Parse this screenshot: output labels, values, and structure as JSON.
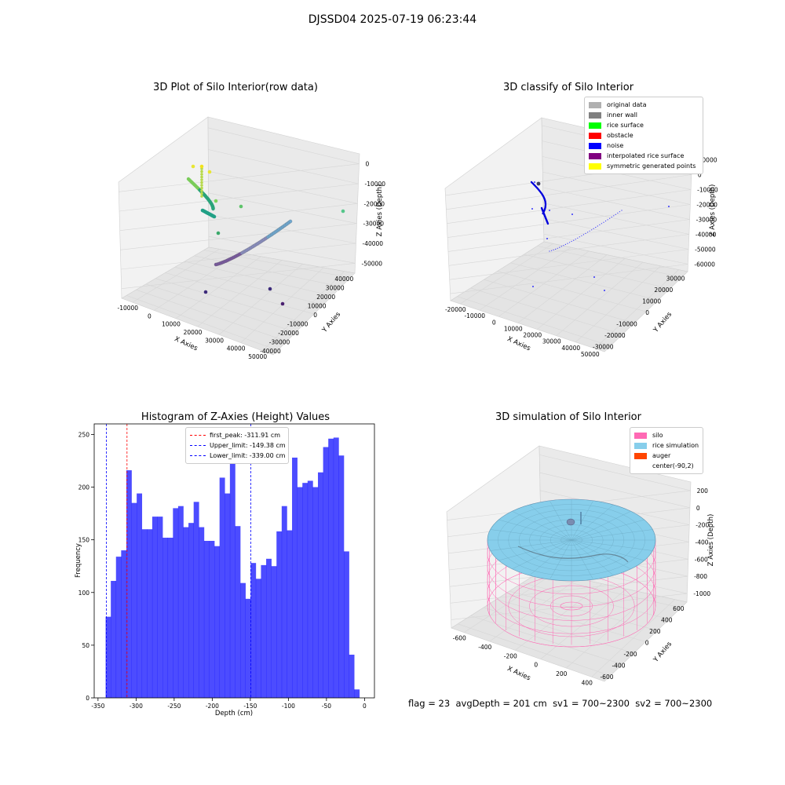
{
  "figure": {
    "suptitle": "DJSSD04 2025-07-19 06:23:44",
    "status": {
      "flag": "flag = 23",
      "avg_depth": "avgDepth = 201 cm",
      "sv1": "sv1 = 700~2300",
      "sv2": "sv2 = 700~2300"
    }
  },
  "panels": {
    "raw": {
      "title": "3D Plot of Silo Interior(row data)",
      "xlabel": "X Axies",
      "ylabel": "Y Axies",
      "zlabel": "Z Axies (Depth)",
      "xticks": [
        "-10000",
        "0",
        "10000",
        "20000",
        "30000",
        "40000",
        "50000"
      ],
      "yticks": [
        "-40000",
        "-30000",
        "-20000",
        "-10000",
        "0",
        "10000",
        "20000",
        "30000",
        "40000"
      ],
      "zticks": [
        "0",
        "-10000",
        "-20000",
        "-30000",
        "-40000",
        "-50000"
      ]
    },
    "classify": {
      "title": "3D classify of Silo Interior",
      "xlabel": "X Axies",
      "ylabel": "Y Axies",
      "zlabel": "Z Axies (Depth)",
      "xticks": [
        "-20000",
        "-10000",
        "0",
        "10000",
        "20000",
        "30000",
        "40000",
        "50000"
      ],
      "yticks": [
        "-30000",
        "-20000",
        "-10000",
        "0",
        "10000",
        "20000",
        "30000"
      ],
      "zticks": [
        "10000",
        "0",
        "-10000",
        "-20000",
        "-30000",
        "-40000",
        "-50000",
        "-60000"
      ],
      "legend": [
        {
          "label": "original data",
          "color": "#b0b0b0"
        },
        {
          "label": "inner wall",
          "color": "#808080"
        },
        {
          "label": "rice surface",
          "color": "#00ff00"
        },
        {
          "label": "obstacle",
          "color": "#ff0000"
        },
        {
          "label": "noise",
          "color": "#0000ff"
        },
        {
          "label": "interpolated rice surface",
          "color": "#800080"
        },
        {
          "label": "symmetric generated points",
          "color": "#ffff00"
        }
      ]
    },
    "simulation": {
      "title": "3D simulation of Silo Interior",
      "xlabel": "X Axies",
      "ylabel": "Y Axies",
      "zlabel": "Z Axies (Depth)",
      "xticks": [
        "-600",
        "-400",
        "-200",
        "0",
        "200",
        "400"
      ],
      "yticks": [
        "-600",
        "-400",
        "-200",
        "0",
        "200",
        "400",
        "600"
      ],
      "zticks": [
        "200",
        "0",
        "-200",
        "-400",
        "-600",
        "-800",
        "-1000"
      ],
      "legend": [
        {
          "label": "silo",
          "color": "#ff69b4"
        },
        {
          "label": "rice simulation",
          "color": "#87ceeb"
        },
        {
          "label": "auger",
          "color": "#ff4500"
        },
        {
          "label": "center(-90,2)",
          "color": ""
        }
      ]
    }
  },
  "chart_data": {
    "type": "bar",
    "title": "Histogram of Z-Axies (Height) Values",
    "xlabel": "Depth (cm)",
    "ylabel": "Frequency",
    "xlim": [
      -355,
      13
    ],
    "ylim": [
      0,
      260
    ],
    "xticks": [
      -350,
      -300,
      -250,
      -200,
      -150,
      -100,
      -50,
      0
    ],
    "yticks": [
      0,
      50,
      100,
      150,
      200,
      250
    ],
    "bin_start": -340,
    "bin_width": 6.8,
    "values": [
      77,
      111,
      134,
      140,
      216,
      185,
      194,
      160,
      160,
      172,
      172,
      152,
      152,
      180,
      182,
      162,
      166,
      186,
      162,
      149,
      149,
      144,
      209,
      194,
      224,
      163,
      109,
      94,
      128,
      113,
      126,
      132,
      125,
      158,
      182,
      159,
      228,
      200,
      204,
      206,
      200,
      214,
      238,
      246,
      247,
      230,
      139,
      41,
      8
    ],
    "color": "#0000ff",
    "vlines": [
      {
        "name": "first_peak: -311.91 cm",
        "x": -311.91,
        "color": "#ff0000"
      },
      {
        "name": "Upper_limit: -149.38 cm",
        "x": -149.38,
        "color": "#0000ff"
      },
      {
        "name": "Lower_limit: -339.00 cm",
        "x": -339.0,
        "color": "#0000ff"
      }
    ],
    "legend_loc": "upper center"
  }
}
